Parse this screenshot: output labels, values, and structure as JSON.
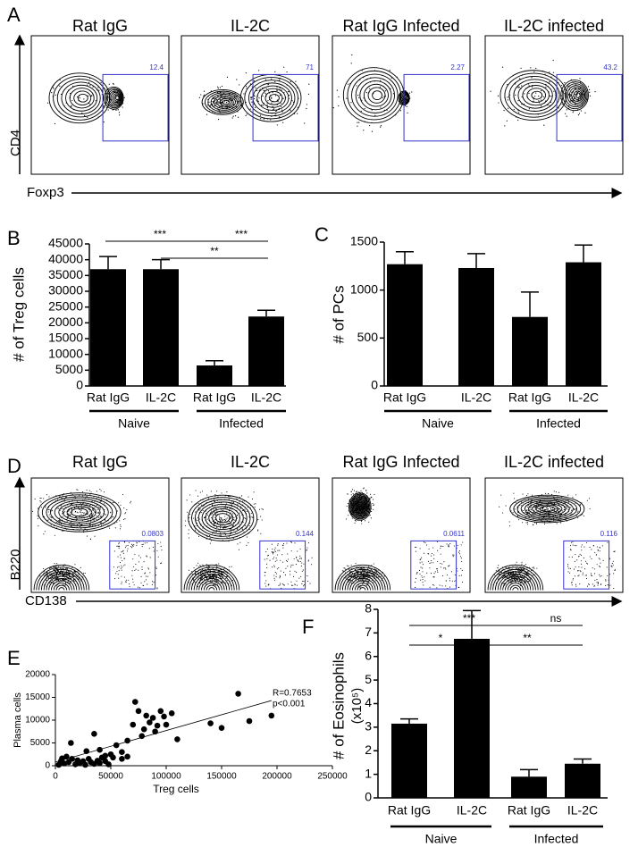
{
  "panel_labels": [
    "A",
    "B",
    "C",
    "D",
    "E",
    "F"
  ],
  "flow_a": {
    "titles": [
      "Rat IgG",
      "IL-2C",
      "Rat IgG Infected",
      "IL-2C infected"
    ],
    "gates": [
      "12.4",
      "71",
      "2.27",
      "43.2"
    ],
    "ylabel": "CD4",
    "xlabel": "Foxp3"
  },
  "flow_d": {
    "titles": [
      "Rat IgG",
      "IL-2C",
      "Rat IgG Infected",
      "IL-2C infected"
    ],
    "gates": [
      "0.0803",
      "0.144",
      "0.0611",
      "0.116"
    ],
    "ylabel": "B220",
    "xlabel": "CD138"
  },
  "chart_data": [
    {
      "type": "bar",
      "ylabel": "# of Treg cells",
      "categories": [
        "Rat IgG",
        "IL-2C",
        "Rat IgG",
        "IL-2C"
      ],
      "groups": [
        "Naive",
        "Infected"
      ],
      "values": [
        37000,
        37000,
        6500,
        22000
      ],
      "errors": [
        4000,
        3000,
        1500,
        2000
      ],
      "color": "#000000",
      "ylim": [
        0,
        45000
      ],
      "yticks": [
        0,
        5000,
        10000,
        15000,
        20000,
        25000,
        30000,
        35000,
        40000,
        45000
      ],
      "significance": [
        "***",
        "***",
        "**"
      ]
    },
    {
      "type": "bar",
      "ylabel": "# of PCs",
      "categories": [
        "Rat IgG",
        "IL-2C",
        "Rat IgG",
        "IL-2C"
      ],
      "groups": [
        "Naive",
        "Infected"
      ],
      "values": [
        1270,
        1230,
        720,
        1290
      ],
      "errors": [
        130,
        150,
        260,
        180
      ],
      "color": "#000000",
      "ylim": [
        0,
        1500
      ],
      "yticks": [
        0,
        500,
        1000,
        1500
      ]
    },
    {
      "type": "scatter",
      "xlabel": "Treg cells",
      "ylabel": "Plasma cells",
      "annotations": [
        "R=0.7653",
        "p<0.001"
      ],
      "color": "#000000",
      "x": [
        5000,
        8000,
        10000,
        12000,
        15000,
        18000,
        20000,
        22000,
        25000,
        27000,
        30000,
        32000,
        35000,
        38000,
        40000,
        42000,
        45000,
        48000,
        3000,
        6000,
        14000,
        28000,
        35000,
        40000,
        50000,
        55000,
        60000,
        65000,
        70000,
        72000,
        75000,
        78000,
        80000,
        82000,
        85000,
        88000,
        90000,
        92000,
        95000,
        98000,
        100000,
        105000,
        110000,
        140000,
        150000,
        165000,
        175000,
        195000,
        60000,
        65000,
        45000,
        52000
      ],
      "y": [
        1000,
        500,
        2000,
        800,
        1500,
        300,
        1200,
        600,
        1000,
        200,
        1500,
        800,
        400,
        1100,
        600,
        1800,
        1000,
        300,
        200,
        1600,
        5000,
        3200,
        7000,
        3500,
        2500,
        4500,
        3000,
        5500,
        9000,
        14000,
        12000,
        6500,
        8000,
        11000,
        9500,
        10500,
        7500,
        8800,
        12000,
        10800,
        9000,
        11500,
        5800,
        9300,
        8300,
        15800,
        9800,
        11000,
        1500,
        2000,
        2200,
        1800
      ],
      "fit": {
        "x": [
          0,
          195000
        ],
        "y": [
          800,
          14300
        ]
      },
      "xlim": [
        0,
        250000
      ],
      "xticks": [
        0,
        50000,
        100000,
        150000,
        200000,
        250000
      ],
      "ylim": [
        0,
        20000
      ],
      "yticks": [
        0,
        5000,
        10000,
        15000,
        20000
      ]
    },
    {
      "type": "bar",
      "ylabel": "# of Eosinophils",
      "yunit": "(x10⁵)",
      "categories": [
        "Rat IgG",
        "IL-2C",
        "Rat IgG",
        "IL-2C"
      ],
      "groups": [
        "Naive",
        "Infected"
      ],
      "values": [
        3.15,
        6.75,
        0.9,
        1.45
      ],
      "errors": [
        0.2,
        1.2,
        0.3,
        0.2
      ],
      "color": "#000000",
      "ylim": [
        0,
        8
      ],
      "yticks": [
        0,
        1,
        2,
        3,
        4,
        5,
        6,
        7,
        8
      ],
      "significance": [
        "***",
        "ns",
        "*",
        "**"
      ]
    }
  ]
}
